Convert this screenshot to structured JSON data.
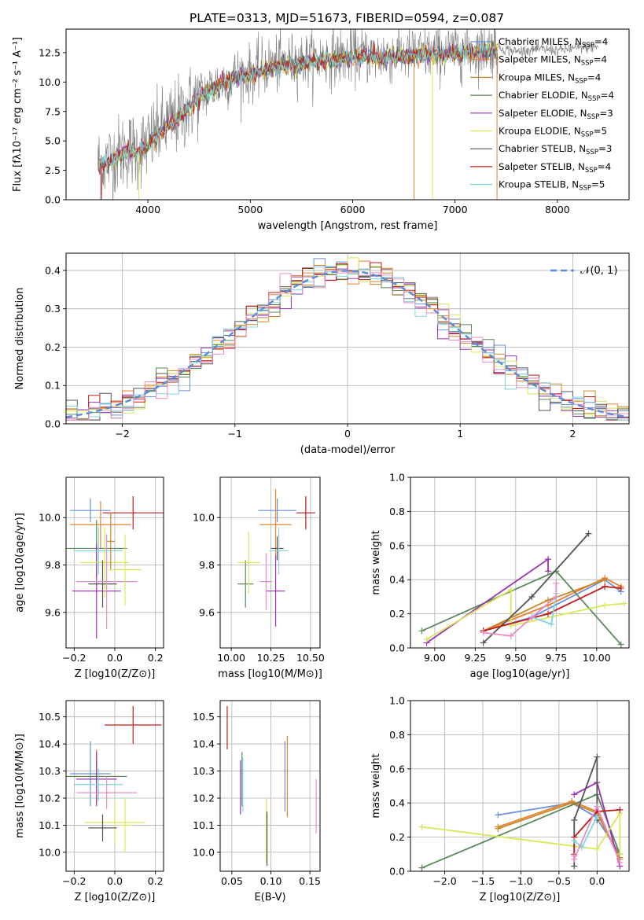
{
  "title": "PLATE=0313, MJD=51673, FIBERID=0594, z=0.087",
  "colors": {
    "Chabrier MILES": "#6a8fdc",
    "Salpeter MILES": "#e8812a",
    "Kroupa MILES": "#c8862a",
    "Chabrier ELODIE": "#5a8a5a",
    "Salpeter ELODIE": "#9b33b5",
    "Kroupa ELODIE": "#d9e85a",
    "Chabrier STELIB": "#555555",
    "Salpeter STELIB": "#c21a1a",
    "Kroupa STELIB": "#7fd8df",
    "pink": "#e88cc8",
    "normal": "#5b8bd6"
  },
  "chart_data": [
    {
      "type": "line",
      "panel": "spectrum",
      "xlabel": "wavelength [Angstrom, rest frame]",
      "ylabel": "Flux [fλ10⁻¹⁷ erg cm⁻² s⁻¹ A⁻¹]",
      "xlim": [
        3200,
        8700
      ],
      "ylim": [
        0,
        14.5
      ],
      "xticks": [
        4000,
        5000,
        6000,
        7000,
        8000
      ],
      "yticks": [
        0.0,
        2.5,
        5.0,
        7.5,
        10.0,
        12.5
      ],
      "xtick_labels": [
        "4000",
        "5000",
        "6000",
        "7000",
        "8000"
      ],
      "ytick_labels": [
        "0.0",
        "2.5",
        "5.0",
        "7.5",
        "10.0",
        "12.5"
      ],
      "legend": "top-right",
      "legend_entries": [
        {
          "name": "Chabrier MILES",
          "label": "Chabrier MILES, N",
          "n": "4"
        },
        {
          "name": "Salpeter MILES",
          "label": "Salpeter MILES, N",
          "n": "4"
        },
        {
          "name": "Kroupa MILES",
          "label": "Kroupa MILES, N",
          "n": "4"
        },
        {
          "name": "Chabrier ELODIE",
          "label": "Chabrier ELODIE, N",
          "n": "4"
        },
        {
          "name": "Salpeter ELODIE",
          "label": "Salpeter ELODIE, N",
          "n": "3"
        },
        {
          "name": "Kroupa ELODIE",
          "label": "Kroupa ELODIE, N",
          "n": "5"
        },
        {
          "name": "Chabrier STELIB",
          "label": "Chabrier STELIB, N",
          "n": "3"
        },
        {
          "name": "Salpeter STELIB",
          "label": "Salpeter STELIB, N",
          "n": "4"
        },
        {
          "name": "Kroupa STELIB",
          "label": "Kroupa STELIB, N",
          "n": "5"
        }
      ],
      "legend_subscript": "SSP",
      "continuum_knots": [
        [
          3500,
          3.0
        ],
        [
          3600,
          3.3
        ],
        [
          3700,
          3.8
        ],
        [
          3800,
          4.3
        ],
        [
          3900,
          4.2
        ],
        [
          4000,
          4.8
        ],
        [
          4100,
          5.8
        ],
        [
          4200,
          6.5
        ],
        [
          4300,
          7.1
        ],
        [
          4400,
          8.0
        ],
        [
          4500,
          8.8
        ],
        [
          4600,
          9.4
        ],
        [
          4700,
          9.9
        ],
        [
          4800,
          10.3
        ],
        [
          4900,
          10.7
        ],
        [
          5000,
          10.7
        ],
        [
          5200,
          11.5
        ],
        [
          5500,
          11.8
        ],
        [
          5800,
          12.1
        ],
        [
          6000,
          12.3
        ],
        [
          6300,
          12.3
        ],
        [
          6600,
          12.4
        ],
        [
          6800,
          12.5
        ],
        [
          7000,
          12.6
        ],
        [
          7200,
          12.7
        ],
        [
          7300,
          12.9
        ],
        [
          7420,
          12.9
        ]
      ],
      "data_extra_knots": [
        [
          7420,
          12.9
        ],
        [
          7600,
          12.6
        ],
        [
          7800,
          12.8
        ],
        [
          8000,
          12.7
        ],
        [
          8200,
          12.9
        ],
        [
          8400,
          13.0
        ]
      ]
    },
    {
      "type": "line",
      "panel": "residuals",
      "xlabel": "(data-model)/error",
      "ylabel": "Normed distribution",
      "xlim": [
        -2.5,
        2.5
      ],
      "ylim": [
        0,
        0.445
      ],
      "xticks": [
        -2,
        -1,
        0,
        1,
        2
      ],
      "yticks": [
        0.0,
        0.1,
        0.2,
        0.3,
        0.4
      ],
      "xtick_labels": [
        "−2",
        "−1",
        "0",
        "1",
        "2"
      ],
      "ytick_labels": [
        "0.0",
        "0.1",
        "0.2",
        "0.3",
        "0.4"
      ],
      "grid": true,
      "legend": "top-right",
      "legend_label": "𝒩(0, 1)",
      "bin_width": 0.1,
      "hist_start": -2.5
    },
    {
      "type": "scatter",
      "panel": "age-vs-Z",
      "xlabel": "Z [log10(Z/Z⊙)]",
      "ylabel": "age  [log10(age/yr)]",
      "xlim": [
        -0.24,
        0.24
      ],
      "ylim": [
        9.45,
        10.17
      ],
      "xticks": [
        -0.2,
        0.0,
        0.2
      ],
      "yticks": [
        9.6,
        9.8,
        10.0
      ],
      "xtick_labels": [
        "−0.2",
        "0.0",
        "0.2"
      ],
      "ytick_labels": [
        "9.6",
        "9.8",
        "10.0"
      ],
      "grid": true,
      "points": [
        {
          "model": "Chabrier MILES",
          "x": -0.12,
          "xerr": 0.1,
          "y": 10.03,
          "yerr": 0.05
        },
        {
          "model": "Salpeter MILES",
          "x": -0.07,
          "xerr": 0.15,
          "y": 9.97,
          "yerr": 0.1
        },
        {
          "model": "Chabrier ELODIE",
          "x": -0.09,
          "xerr": 0.15,
          "y": 9.87,
          "yerr": 0.12
        },
        {
          "model": "Salpeter ELODIE",
          "x": -0.09,
          "xerr": 0.12,
          "y": 9.69,
          "yerr": 0.2
        },
        {
          "model": "Kroupa ELODIE",
          "x": -0.05,
          "xerr": 0.12,
          "y": 9.81,
          "yerr": 0.15
        },
        {
          "model": "Chabrier STELIB",
          "x": -0.06,
          "xerr": 0.07,
          "y": 9.72,
          "yerr": 0.1
        },
        {
          "model": "Salpeter STELIB",
          "x": 0.09,
          "xerr": 0.15,
          "y": 10.02,
          "yerr": 0.07
        },
        {
          "model": "Kroupa STELIB",
          "x": -0.08,
          "xerr": 0.12,
          "y": 9.86,
          "yerr": 0.1
        },
        {
          "model": "pink",
          "x": -0.04,
          "xerr": 0.15,
          "y": 9.73,
          "yerr": 0.2
        },
        {
          "model": "Kroupa MILES",
          "x": -0.02,
          "xerr": 0.02,
          "y": 9.9,
          "yerr": 0.12
        },
        {
          "model": "Kroupa ELODIE",
          "x": 0.05,
          "xerr": 0.08,
          "y": 9.78,
          "yerr": 0.15
        }
      ]
    },
    {
      "type": "scatter",
      "panel": "age-vs-mass",
      "xlabel": "mass [log10(M/M⊙)]",
      "ylabel": "",
      "xlim": [
        9.93,
        10.56
      ],
      "ylim": [
        9.45,
        10.17
      ],
      "xticks": [
        10.0,
        10.25,
        10.5
      ],
      "yticks": [
        9.6,
        9.8,
        10.0
      ],
      "xtick_labels": [
        "10.00",
        "10.25",
        "10.50"
      ],
      "ytick_labels": [
        "9.6",
        "9.8",
        "10.0"
      ],
      "grid": true,
      "points": [
        {
          "model": "Chabrier MILES",
          "x": 10.29,
          "xerr": 0.12,
          "y": 10.03,
          "yerr": 0.05
        },
        {
          "model": "Salpeter MILES",
          "x": 10.28,
          "xerr": 0.1,
          "y": 9.97,
          "yerr": 0.15
        },
        {
          "model": "Chabrier ELODIE",
          "x": 10.09,
          "xerr": 0.05,
          "y": 9.72,
          "yerr": 0.1
        },
        {
          "model": "Salpeter ELODIE",
          "x": 10.28,
          "xerr": 0.06,
          "y": 9.69,
          "yerr": 0.15
        },
        {
          "model": "Kroupa ELODIE",
          "x": 10.11,
          "xerr": 0.07,
          "y": 9.81,
          "yerr": 0.13
        },
        {
          "model": "Chabrier STELIB",
          "x": 10.29,
          "xerr": 0.04,
          "y": 9.87,
          "yerr": 0.05
        },
        {
          "model": "Salpeter STELIB",
          "x": 10.47,
          "xerr": 0.06,
          "y": 10.02,
          "yerr": 0.07
        },
        {
          "model": "Kroupa STELIB",
          "x": 10.3,
          "xerr": 0.06,
          "y": 9.86,
          "yerr": 0.1
        },
        {
          "model": "pink",
          "x": 10.22,
          "xerr": 0.04,
          "y": 9.73,
          "yerr": 0.12
        }
      ]
    },
    {
      "type": "line",
      "panel": "massweight-vs-age",
      "xlabel": "age  [log10(age/yr)]",
      "ylabel": "mass weight",
      "xlim": [
        8.85,
        10.2
      ],
      "ylim": [
        0,
        1.0
      ],
      "xticks": [
        9.0,
        9.25,
        9.5,
        9.75,
        10.0
      ],
      "yticks": [
        0.0,
        0.2,
        0.4,
        0.6,
        0.8,
        1.0
      ],
      "xtick_labels": [
        "9.00",
        "9.25",
        "9.50",
        "9.75",
        "10.00"
      ],
      "ytick_labels": [
        "0.0",
        "0.2",
        "0.4",
        "0.6",
        "0.8",
        "1.0"
      ],
      "grid": true,
      "series": [
        {
          "model": "Chabrier MILES",
          "x": [
            9.3,
            9.6,
            10.05,
            10.15
          ],
          "y": [
            0.1,
            0.18,
            0.4,
            0.33
          ]
        },
        {
          "model": "Salpeter MILES",
          "x": [
            9.3,
            9.7,
            10.05,
            10.15
          ],
          "y": [
            0.1,
            0.25,
            0.41,
            0.36
          ]
        },
        {
          "model": "Kroupa MILES",
          "x": [
            9.3,
            9.7,
            10.05
          ],
          "y": [
            0.1,
            0.28,
            0.4
          ]
        },
        {
          "model": "Chabrier ELODIE",
          "x": [
            8.92,
            9.75,
            10.15
          ],
          "y": [
            0.1,
            0.45,
            0.02
          ]
        },
        {
          "model": "Salpeter ELODIE",
          "x": [
            8.95,
            9.7,
            9.7
          ],
          "y": [
            0.03,
            0.52,
            0.45
          ]
        },
        {
          "model": "Kroupa ELODIE",
          "x": [
            8.95,
            9.47,
            9.47,
            10.05,
            10.17
          ],
          "y": [
            0.05,
            0.34,
            0.13,
            0.25,
            0.26
          ]
        },
        {
          "model": "Chabrier STELIB",
          "x": [
            9.3,
            9.6,
            9.95
          ],
          "y": [
            0.03,
            0.3,
            0.67
          ]
        },
        {
          "model": "Salpeter STELIB",
          "x": [
            9.3,
            9.7,
            10.05,
            10.15
          ],
          "y": [
            0.1,
            0.2,
            0.36,
            0.35
          ]
        },
        {
          "model": "Kroupa STELIB",
          "x": [
            9.6,
            9.72,
            9.75
          ],
          "y": [
            0.18,
            0.14,
            0.32
          ]
        },
        {
          "model": "pink",
          "x": [
            9.3,
            9.47,
            9.6,
            9.75,
            9.75
          ],
          "y": [
            0.09,
            0.07,
            0.18,
            0.3,
            0.38
          ]
        }
      ]
    },
    {
      "type": "scatter",
      "panel": "mass-vs-Z",
      "xlabel": "Z [log10(Z/Z⊙)]",
      "ylabel": "mass [log10(M/M⊙)]",
      "xlim": [
        -0.24,
        0.24
      ],
      "ylim": [
        9.93,
        10.56
      ],
      "xticks": [
        -0.2,
        0.0,
        0.2
      ],
      "yticks": [
        10.0,
        10.1,
        10.2,
        10.3,
        10.4,
        10.5
      ],
      "xtick_labels": [
        "−0.2",
        "0.0",
        "0.2"
      ],
      "ytick_labels": [
        "10.0",
        "10.1",
        "10.2",
        "10.3",
        "10.4",
        "10.5"
      ],
      "grid": true,
      "points": [
        {
          "model": "Chabrier MILES",
          "x": -0.12,
          "xerr": 0.1,
          "y": 10.29,
          "yerr": 0.12
        },
        {
          "model": "Salpeter MILES",
          "x": -0.09,
          "xerr": 0.14,
          "y": 10.28,
          "yerr": 0.1
        },
        {
          "model": "Chabrier ELODIE",
          "x": -0.09,
          "xerr": 0.15,
          "y": 10.28,
          "yerr": 0.06
        },
        {
          "model": "Salpeter ELODIE",
          "x": -0.09,
          "xerr": 0.1,
          "y": 10.27,
          "yerr": 0.1
        },
        {
          "model": "Kroupa ELODIE",
          "x": 0.0,
          "xerr": 0.15,
          "y": 10.11,
          "yerr": 0.08
        },
        {
          "model": "Chabrier STELIB",
          "x": -0.06,
          "xerr": 0.07,
          "y": 10.09,
          "yerr": 0.05
        },
        {
          "model": "Salpeter STELIB",
          "x": 0.09,
          "xerr": 0.14,
          "y": 10.47,
          "yerr": 0.07
        },
        {
          "model": "Kroupa STELIB",
          "x": -0.08,
          "xerr": 0.12,
          "y": 10.25,
          "yerr": 0.06
        },
        {
          "model": "pink",
          "x": -0.04,
          "xerr": 0.15,
          "y": 10.22,
          "yerr": 0.06
        },
        {
          "model": "Kroupa ELODIE",
          "x": 0.05,
          "xerr": 0.03,
          "y": 10.1,
          "yerr": 0.1
        }
      ]
    },
    {
      "type": "scatter",
      "panel": "mass-vs-EBV",
      "xlabel": "E(B-V)",
      "ylabel": "",
      "xlim": [
        0.035,
        0.163
      ],
      "ylim": [
        9.93,
        10.56
      ],
      "xticks": [
        0.05,
        0.1,
        0.15
      ],
      "yticks": [
        10.0,
        10.1,
        10.2,
        10.3,
        10.4,
        10.5
      ],
      "xtick_labels": [
        "0.05",
        "0.10",
        "0.15"
      ],
      "ytick_labels": [
        "10.0",
        "10.1",
        "10.2",
        "10.3",
        "10.4",
        "10.5"
      ],
      "grid": true,
      "points": [
        {
          "model": "Salpeter STELIB",
          "x": 0.044,
          "xerr": 0.0,
          "y": 10.46,
          "yerr": 0.08
        },
        {
          "model": "Salpeter ELODIE",
          "x": 0.061,
          "xerr": 0.0,
          "y": 10.24,
          "yerr": 0.1
        },
        {
          "model": "Chabrier ELODIE",
          "x": 0.063,
          "xerr": 0.0,
          "y": 10.27,
          "yerr": 0.1
        },
        {
          "model": "Kroupa STELIB",
          "x": 0.064,
          "xerr": 0.0,
          "y": 10.25,
          "yerr": 0.1
        },
        {
          "model": "Kroupa ELODIE",
          "x": 0.094,
          "xerr": 0.0,
          "y": 10.08,
          "yerr": 0.12
        },
        {
          "model": "Chabrier STELIB",
          "x": 0.095,
          "xerr": 0.0,
          "y": 10.05,
          "yerr": 0.1
        },
        {
          "model": "Chabrier MILES",
          "x": 0.118,
          "xerr": 0.0,
          "y": 10.28,
          "yerr": 0.13
        },
        {
          "model": "Salpeter MILES",
          "x": 0.121,
          "xerr": 0.0,
          "y": 10.28,
          "yerr": 0.15
        },
        {
          "model": "pink",
          "x": 0.158,
          "xerr": 0.0,
          "y": 10.17,
          "yerr": 0.1
        }
      ]
    },
    {
      "type": "line",
      "panel": "massweight-vs-Z",
      "xlabel": "Z [log10(Z/Z⊙)]",
      "ylabel": "mass weight",
      "xlim": [
        -2.45,
        0.42
      ],
      "ylim": [
        0,
        1.0
      ],
      "xticks": [
        -2.0,
        -1.5,
        -1.0,
        -0.5,
        0.0
      ],
      "yticks": [
        0.0,
        0.2,
        0.4,
        0.6,
        0.8,
        1.0
      ],
      "xtick_labels": [
        "−2.0",
        "−1.5",
        "−1.0",
        "−0.5",
        "0.0"
      ],
      "ytick_labels": [
        "0.0",
        "0.2",
        "0.4",
        "0.6",
        "0.8",
        "1.0"
      ],
      "grid": true,
      "series": [
        {
          "model": "Chabrier MILES",
          "x": [
            -1.3,
            -0.33,
            -0.02,
            0.3
          ],
          "y": [
            0.33,
            0.4,
            0.32,
            0.1
          ]
        },
        {
          "model": "Salpeter MILES",
          "x": [
            -1.3,
            -0.33,
            0.0,
            0.3
          ],
          "y": [
            0.26,
            0.41,
            0.35,
            0.08
          ]
        },
        {
          "model": "Kroupa MILES",
          "x": [
            -1.3,
            -0.33,
            0.0,
            0.3
          ],
          "y": [
            0.25,
            0.4,
            0.34,
            0.07
          ]
        },
        {
          "model": "Chabrier ELODIE",
          "x": [
            -2.3,
            0.0,
            0.3
          ],
          "y": [
            0.02,
            0.45,
            0.1
          ]
        },
        {
          "model": "Salpeter ELODIE",
          "x": [
            -0.3,
            0.0,
            0.3
          ],
          "y": [
            0.45,
            0.52,
            0.03
          ]
        },
        {
          "model": "Kroupa ELODIE",
          "x": [
            -2.3,
            0.0,
            0.3,
            0.3
          ],
          "y": [
            0.26,
            0.13,
            0.34,
            0.1
          ]
        },
        {
          "model": "Chabrier STELIB",
          "x": [
            -0.3,
            -0.3,
            0.0,
            0.0
          ],
          "y": [
            0.03,
            0.3,
            0.67,
            0.3
          ]
        },
        {
          "model": "Salpeter STELIB",
          "x": [
            -0.3,
            -0.3,
            0.0,
            0.3
          ],
          "y": [
            0.1,
            0.2,
            0.35,
            0.36
          ]
        },
        {
          "model": "Kroupa STELIB",
          "x": [
            -0.3,
            -0.2,
            0.0
          ],
          "y": [
            0.18,
            0.14,
            0.32
          ]
        },
        {
          "model": "pink",
          "x": [
            -0.3,
            -0.3,
            0.0,
            0.3
          ],
          "y": [
            0.09,
            0.07,
            0.38,
            0.05
          ]
        }
      ]
    }
  ]
}
